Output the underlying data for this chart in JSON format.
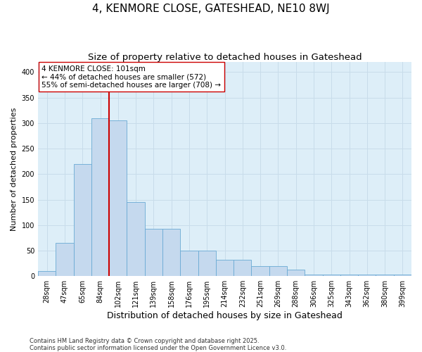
{
  "title": "4, KENMORE CLOSE, GATESHEAD, NE10 8WJ",
  "subtitle": "Size of property relative to detached houses in Gateshead",
  "xlabel": "Distribution of detached houses by size in Gateshead",
  "ylabel": "Number of detached properties",
  "categories": [
    "28sqm",
    "47sqm",
    "65sqm",
    "84sqm",
    "102sqm",
    "121sqm",
    "139sqm",
    "158sqm",
    "176sqm",
    "195sqm",
    "214sqm",
    "232sqm",
    "251sqm",
    "269sqm",
    "288sqm",
    "306sqm",
    "325sqm",
    "343sqm",
    "362sqm",
    "380sqm",
    "399sqm"
  ],
  "values": [
    10,
    65,
    220,
    310,
    305,
    145,
    93,
    93,
    50,
    50,
    32,
    32,
    20,
    20,
    13,
    3,
    3,
    3,
    3,
    3,
    3
  ],
  "bar_color": "#c5d9ee",
  "bar_edgecolor": "#6aaad4",
  "vline_color": "#cc0000",
  "vline_x": 3.5,
  "annotation_line1": "4 KENMORE CLOSE: 101sqm",
  "annotation_line2": "← 44% of detached houses are smaller (572)",
  "annotation_line3": "55% of semi-detached houses are larger (708) →",
  "ylim": [
    0,
    420
  ],
  "yticks": [
    0,
    50,
    100,
    150,
    200,
    250,
    300,
    350,
    400
  ],
  "grid_color": "#c8dcea",
  "plot_bg_color": "#ddeef8",
  "footer_line1": "Contains HM Land Registry data © Crown copyright and database right 2025.",
  "footer_line2": "Contains public sector information licensed under the Open Government Licence v3.0.",
  "title_fontsize": 11,
  "subtitle_fontsize": 9.5,
  "xlabel_fontsize": 9,
  "ylabel_fontsize": 8,
  "tick_fontsize": 7,
  "annot_fontsize": 7.5,
  "footer_fontsize": 6
}
